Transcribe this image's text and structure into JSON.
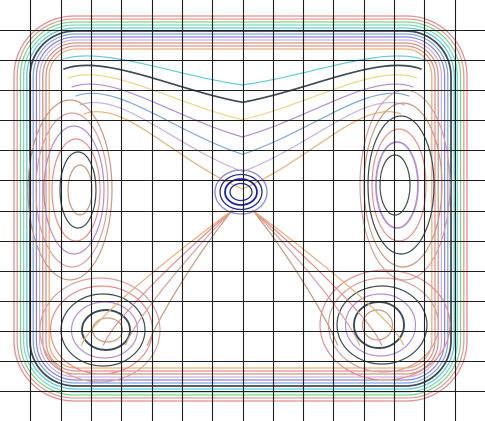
{
  "chart_data": {
    "type": "contour",
    "title": "",
    "xlabel": "",
    "ylabel": "",
    "grid": true,
    "grid_cells": {
      "columns": 16,
      "rows": 14
    },
    "legend": "none",
    "colors": {
      "background": "#ffffff",
      "grid": "#1f1f1f",
      "contours": [
        "#e58f8f",
        "#d9a0a0",
        "#c99a80",
        "#e8b07a",
        "#ead88a",
        "#c8b3e0",
        "#b48fd1",
        "#8f86d6",
        "#7fa7e0",
        "#63c9d6",
        "#7bdcc0",
        "#89d28a",
        "#3f4a52",
        "#222c8c",
        "#1d1da8"
      ]
    },
    "features": [
      {
        "name": "outer-rounded-rectangle-rings",
        "count": 12
      },
      {
        "name": "left-elongated-closed-contours",
        "count": 6
      },
      {
        "name": "right-elongated-closed-contours",
        "count": 6
      },
      {
        "name": "bottom-left-closed-contours",
        "count": 6
      },
      {
        "name": "bottom-right-closed-contours",
        "count": 6
      },
      {
        "name": "central-ellipse-contours",
        "count": 4
      },
      {
        "name": "upper-v-contours",
        "count": 7
      },
      {
        "name": "lower-central-fan-contours",
        "count": 4
      }
    ]
  }
}
